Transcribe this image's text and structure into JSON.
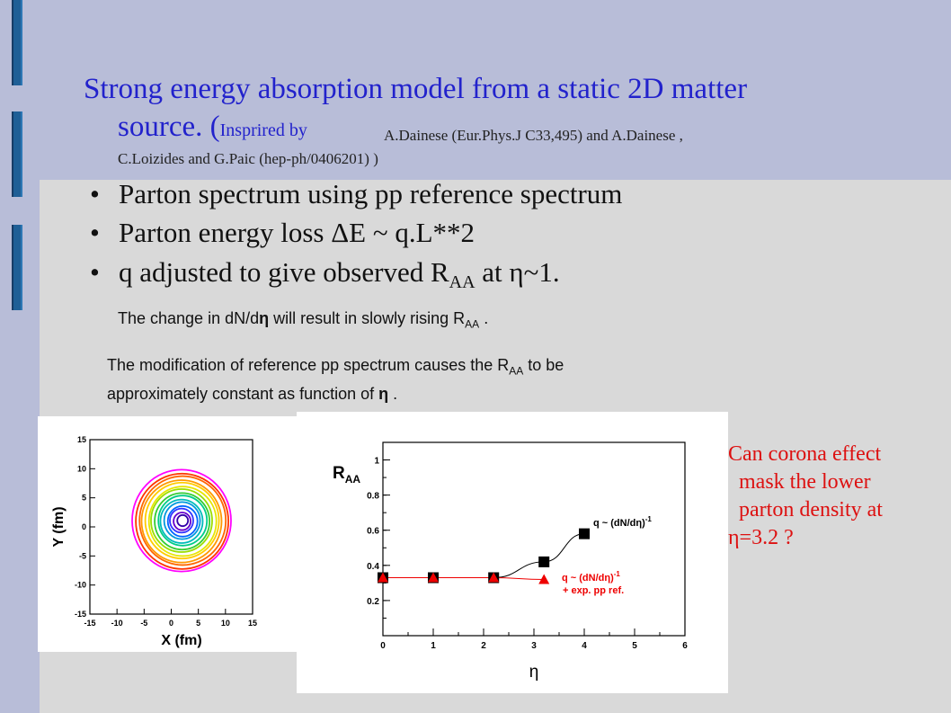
{
  "title": {
    "line1": "Strong energy absorption model from a static 2D matter",
    "line2": "source. (",
    "inspired": "Insprired by",
    "ref1": "A.Dainese (Eur.Phys.J C33,495) and A.Dainese ,",
    "ref2": "C.Loizides and G.Paic (hep-ph/0406201) )"
  },
  "bullets": [
    {
      "symbol": "•",
      "text": "Parton spectrum using pp reference spectrum"
    },
    {
      "symbol": "•",
      "text": "Parton energy loss ΔE ~ q.L**2"
    },
    {
      "symbol": "•",
      "text_a": "q adjusted to give observed R",
      "sub": "AA",
      "text_b": " at η~1."
    }
  ],
  "notes": {
    "note1_a": "The change in dN/d",
    "note1_eta": "η",
    "note1_b": " will result in slowly rising R",
    "note1_sub": "AA",
    "note1_c": " .",
    "note2_a": "The modification of reference pp spectrum causes the R",
    "note2_sub": "AA",
    "note2_b": " to be",
    "note2_c": "approximately constant as function of ",
    "note2_eta": "η",
    "note2_d": " ."
  },
  "question": {
    "line1": "Can corona effect",
    "line2": "mask the lower",
    "line3": "parton density at",
    "line4": "η=3.2 ?"
  },
  "contour_plot": {
    "xlabel": "X (fm)",
    "ylabel": "Y (fm)",
    "ticks": [
      "-15",
      "-10",
      "-5",
      "0",
      "5",
      "10",
      "15"
    ]
  },
  "chart_data": [
    {
      "type": "line",
      "title": "",
      "ylabel": "R",
      "ylabel_sub": "AA",
      "xlabel": "η",
      "xlim": [
        0,
        6
      ],
      "ylim": [
        0,
        1.1
      ],
      "x_ticks": [
        "0",
        "1",
        "2",
        "3",
        "4",
        "5",
        "6"
      ],
      "y_ticks": [
        {
          "v": 0.2,
          "label": "0.2"
        },
        {
          "v": 0.4,
          "label": "0.4"
        },
        {
          "v": 0.6,
          "label": "0.6"
        },
        {
          "v": 0.8,
          "label": "0.8"
        },
        {
          "v": 1.0,
          "label": "1"
        }
      ],
      "series": [
        {
          "name": "q ~ (dN/dη)",
          "name_sup": "-1",
          "color": "#000000",
          "marker": "square",
          "x": [
            0,
            1,
            2.2,
            3.2,
            4
          ],
          "y": [
            0.33,
            0.33,
            0.33,
            0.42,
            0.58
          ]
        },
        {
          "name": "q ~ (dN/dη)",
          "name_sup": "-1",
          "name2": "+ exp. pp ref.",
          "color": "#ee0000",
          "marker": "triangle",
          "x": [
            0,
            1,
            2.2,
            3.2
          ],
          "y": [
            0.33,
            0.33,
            0.33,
            0.32
          ]
        }
      ]
    }
  ]
}
